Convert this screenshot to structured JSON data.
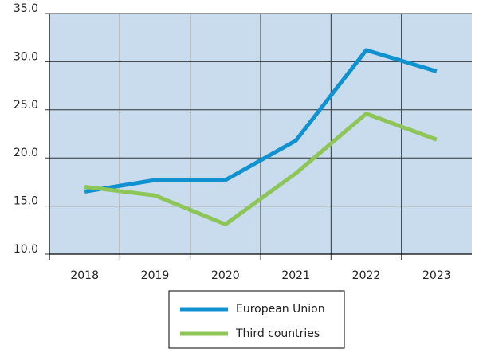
{
  "chart_data": {
    "type": "line",
    "categories": [
      "2018",
      "2019",
      "2020",
      "2021",
      "2022",
      "2023"
    ],
    "series": [
      {
        "name": "European Union",
        "color": "#1192d0",
        "values": [
          16.5,
          17.7,
          17.7,
          21.8,
          31.2,
          29.0
        ]
      },
      {
        "name": "Third countries",
        "color": "#8dc556",
        "values": [
          17.0,
          16.1,
          13.1,
          18.4,
          24.6,
          21.9
        ]
      }
    ],
    "ylim": [
      10,
      35
    ],
    "yticks": [
      {
        "value": 10,
        "label": "10.0"
      },
      {
        "value": 15,
        "label": "15.0"
      },
      {
        "value": 20,
        "label": "20.0"
      },
      {
        "value": 25,
        "label": "25.0"
      },
      {
        "value": 30,
        "label": "30.0"
      },
      {
        "value": 35,
        "label": "35.0"
      }
    ],
    "grid": true,
    "legend": "bottom"
  }
}
